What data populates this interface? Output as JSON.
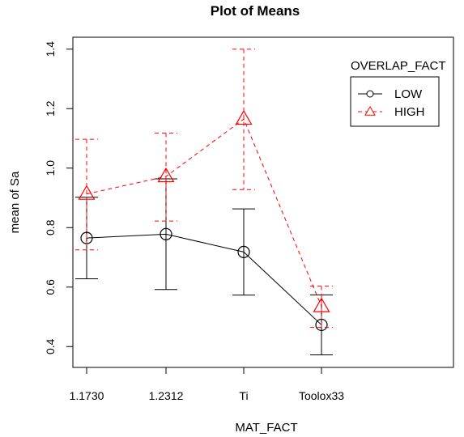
{
  "chart_data": {
    "type": "line",
    "title": "Plot of Means",
    "xlabel": "MAT_FACT",
    "ylabel": "mean of Sa",
    "categories": [
      "1.1730",
      "1.2312",
      "Ti",
      "Toolox33"
    ],
    "ylim": [
      0.33,
      1.44
    ],
    "yticks": [
      "0.4",
      "0.6",
      "0.8",
      "1.0",
      "1.2",
      "1.4"
    ],
    "legend": {
      "title": "OVERLAP_FACT",
      "placement": "top-right"
    },
    "grid": false,
    "series": [
      {
        "name": "LOW",
        "color": "#000000",
        "line_style": "solid",
        "marker": "circle",
        "values": [
          0.765,
          0.778,
          0.718,
          0.473
        ],
        "error_low": [
          0.628,
          0.592,
          0.573,
          0.372
        ],
        "error_high": [
          0.902,
          0.964,
          0.863,
          0.574
        ]
      },
      {
        "name": "HIGH",
        "color": "#ff0000",
        "line_style": "dashed",
        "marker": "triangle",
        "values": [
          0.913,
          0.972,
          1.165,
          0.535
        ],
        "error_low": [
          0.725,
          0.822,
          0.928,
          0.465
        ],
        "error_high": [
          1.097,
          1.118,
          1.4,
          0.603
        ]
      }
    ]
  }
}
